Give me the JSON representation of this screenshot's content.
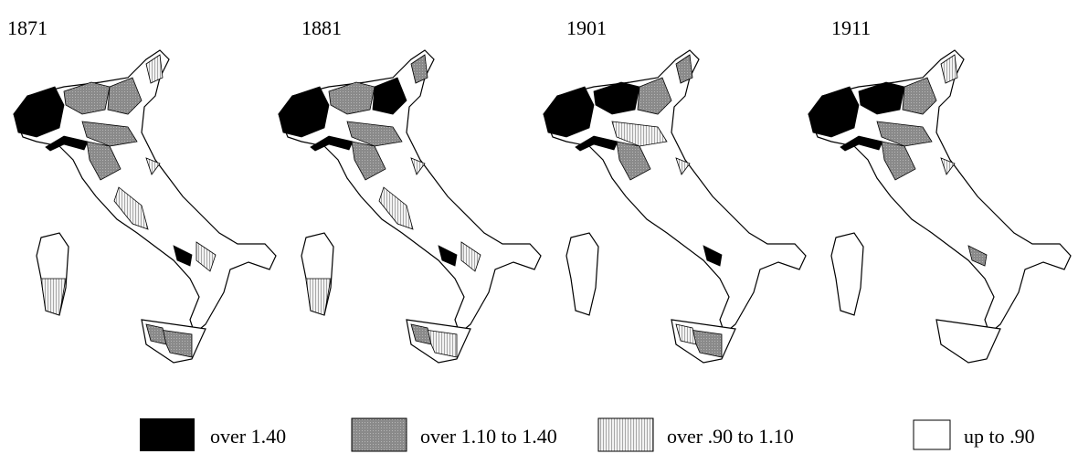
{
  "panels": [
    {
      "title": "1871"
    },
    {
      "title": "1881"
    },
    {
      "title": "1901"
    },
    {
      "title": "1911"
    }
  ],
  "legend": [
    {
      "label": "over 1.40"
    },
    {
      "label": "over 1.10 to 1.40"
    },
    {
      "label": "over .90 to 1.10"
    },
    {
      "label": "up to .90"
    }
  ]
}
